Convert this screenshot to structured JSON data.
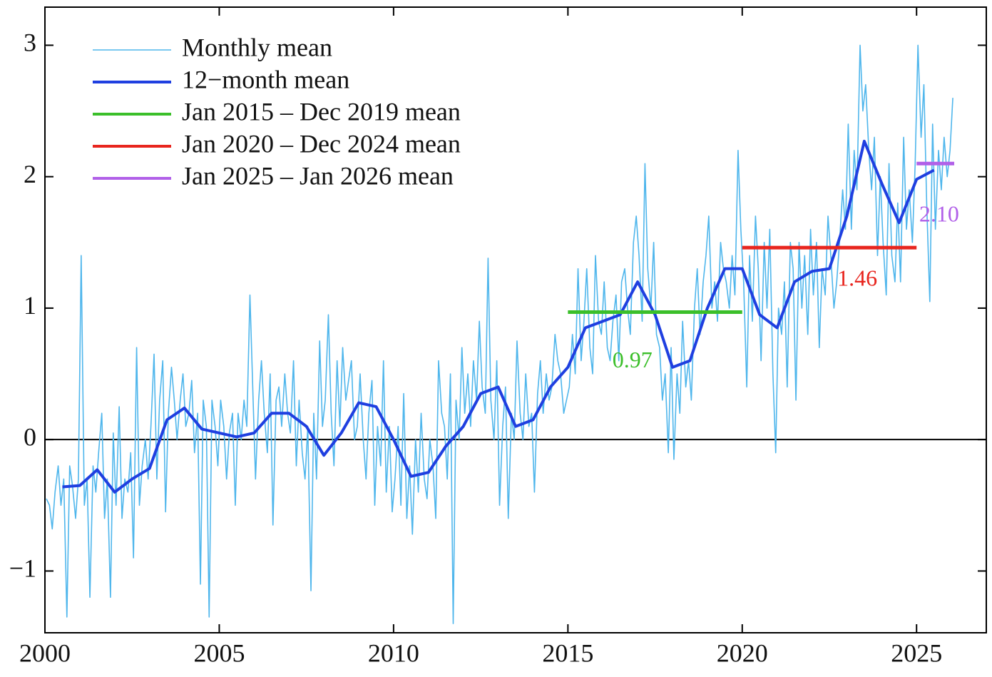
{
  "chart_data": {
    "type": "line",
    "xlim": [
      2000,
      2027
    ],
    "ylim": [
      -1.47,
      3.29
    ],
    "xticks": [
      2000,
      2005,
      2010,
      2015,
      2020,
      2025
    ],
    "yticks": [
      {
        "value": -1,
        "label": "−1"
      },
      0,
      1,
      2,
      3
    ],
    "legend": "upper left",
    "series": [
      {
        "name": "Monthly mean",
        "color": "#4fb6ec",
        "x": [
          2000.04,
          2000.13,
          2000.21,
          2000.29,
          2000.38,
          2000.46,
          2000.54,
          2000.63,
          2000.71,
          2000.79,
          2000.88,
          2000.96,
          2001.04,
          2001.13,
          2001.21,
          2001.29,
          2001.38,
          2001.46,
          2001.54,
          2001.63,
          2001.71,
          2001.79,
          2001.88,
          2001.96,
          2002.04,
          2002.13,
          2002.21,
          2002.29,
          2002.38,
          2002.46,
          2002.54,
          2002.63,
          2002.71,
          2002.79,
          2002.88,
          2002.96,
          2003.04,
          2003.13,
          2003.21,
          2003.29,
          2003.38,
          2003.46,
          2003.54,
          2003.63,
          2003.71,
          2003.79,
          2003.88,
          2003.96,
          2004.04,
          2004.13,
          2004.21,
          2004.29,
          2004.38,
          2004.46,
          2004.54,
          2004.63,
          2004.71,
          2004.79,
          2004.88,
          2004.96,
          2005.04,
          2005.13,
          2005.21,
          2005.29,
          2005.38,
          2005.46,
          2005.54,
          2005.63,
          2005.71,
          2005.79,
          2005.88,
          2005.96,
          2006.04,
          2006.13,
          2006.21,
          2006.29,
          2006.38,
          2006.46,
          2006.54,
          2006.63,
          2006.71,
          2006.79,
          2006.88,
          2006.96,
          2007.04,
          2007.13,
          2007.21,
          2007.29,
          2007.38,
          2007.46,
          2007.54,
          2007.63,
          2007.71,
          2007.79,
          2007.88,
          2007.96,
          2008.04,
          2008.13,
          2008.21,
          2008.29,
          2008.38,
          2008.46,
          2008.54,
          2008.63,
          2008.71,
          2008.79,
          2008.88,
          2008.96,
          2009.04,
          2009.13,
          2009.21,
          2009.29,
          2009.38,
          2009.46,
          2009.54,
          2009.63,
          2009.71,
          2009.79,
          2009.88,
          2009.96,
          2010.04,
          2010.13,
          2010.21,
          2010.29,
          2010.38,
          2010.46,
          2010.54,
          2010.63,
          2010.71,
          2010.79,
          2010.88,
          2010.96,
          2011.04,
          2011.13,
          2011.21,
          2011.29,
          2011.38,
          2011.46,
          2011.54,
          2011.63,
          2011.71,
          2011.79,
          2011.88,
          2011.96,
          2012.04,
          2012.13,
          2012.21,
          2012.29,
          2012.38,
          2012.46,
          2012.54,
          2012.63,
          2012.71,
          2012.79,
          2012.88,
          2012.96,
          2013.04,
          2013.13,
          2013.21,
          2013.29,
          2013.38,
          2013.46,
          2013.54,
          2013.63,
          2013.71,
          2013.79,
          2013.88,
          2013.96,
          2014.04,
          2014.13,
          2014.21,
          2014.29,
          2014.38,
          2014.46,
          2014.54,
          2014.63,
          2014.71,
          2014.79,
          2014.88,
          2014.96,
          2015.04,
          2015.13,
          2015.21,
          2015.29,
          2015.38,
          2015.46,
          2015.54,
          2015.63,
          2015.71,
          2015.79,
          2015.88,
          2015.96,
          2016.04,
          2016.13,
          2016.21,
          2016.29,
          2016.38,
          2016.46,
          2016.54,
          2016.63,
          2016.71,
          2016.79,
          2016.88,
          2016.96,
          2017.04,
          2017.13,
          2017.21,
          2017.29,
          2017.38,
          2017.46,
          2017.54,
          2017.63,
          2017.71,
          2017.79,
          2017.88,
          2017.96,
          2018.04,
          2018.13,
          2018.21,
          2018.29,
          2018.38,
          2018.46,
          2018.54,
          2018.63,
          2018.71,
          2018.79,
          2018.88,
          2018.96,
          2019.04,
          2019.13,
          2019.21,
          2019.29,
          2019.38,
          2019.46,
          2019.54,
          2019.63,
          2019.71,
          2019.79,
          2019.88,
          2019.96,
          2020.04,
          2020.13,
          2020.21,
          2020.29,
          2020.38,
          2020.46,
          2020.54,
          2020.63,
          2020.71,
          2020.79,
          2020.88,
          2020.96,
          2021.04,
          2021.13,
          2021.21,
          2021.29,
          2021.38,
          2021.46,
          2021.54,
          2021.63,
          2021.71,
          2021.79,
          2021.88,
          2021.96,
          2022.04,
          2022.13,
          2022.21,
          2022.29,
          2022.38,
          2022.46,
          2022.54,
          2022.63,
          2022.71,
          2022.79,
          2022.88,
          2022.96,
          2023.04,
          2023.13,
          2023.21,
          2023.29,
          2023.38,
          2023.46,
          2023.54,
          2023.63,
          2023.71,
          2023.79,
          2023.88,
          2023.96,
          2024.04,
          2024.13,
          2024.21,
          2024.29,
          2024.38,
          2024.46,
          2024.54,
          2024.63,
          2024.71,
          2024.79,
          2024.88,
          2024.96,
          2025.04,
          2025.13,
          2025.21,
          2025.29,
          2025.38,
          2025.46,
          2025.54,
          2025.63,
          2025.71,
          2025.79,
          2025.88,
          2025.96,
          2026.04
        ],
        "values": [
          -0.45,
          -0.5,
          -0.68,
          -0.4,
          -0.2,
          -0.5,
          -0.3,
          -1.35,
          -0.2,
          -0.35,
          -0.6,
          -0.3,
          1.4,
          -0.5,
          -0.3,
          -1.2,
          -0.2,
          -0.4,
          -0.1,
          0.2,
          -0.6,
          -0.3,
          -1.2,
          0.05,
          -0.5,
          0.25,
          -0.6,
          -0.3,
          -0.4,
          -0.1,
          -0.9,
          0.7,
          -0.5,
          -0.2,
          0.0,
          -0.3,
          0.1,
          0.65,
          -0.3,
          0.3,
          0.6,
          -0.55,
          0.2,
          0.55,
          0.3,
          0.0,
          0.3,
          0.5,
          0.1,
          0.2,
          0.45,
          -0.1,
          0.2,
          -1.1,
          0.3,
          0.1,
          -1.35,
          0.3,
          0.1,
          -0.2,
          0.3,
          0.1,
          -0.3,
          0.05,
          0.2,
          -0.5,
          0.2,
          0.0,
          0.3,
          0.1,
          1.1,
          0.4,
          -0.3,
          0.3,
          0.6,
          0.2,
          -0.1,
          0.5,
          -0.65,
          0.3,
          0.4,
          0.1,
          0.5,
          0.2,
          0.05,
          0.6,
          -0.2,
          0.3,
          -0.1,
          -0.3,
          0.1,
          -1.15,
          0.2,
          -0.3,
          0.75,
          0.1,
          0.3,
          0.95,
          0.2,
          -0.2,
          0.6,
          0.1,
          0.7,
          0.3,
          0.45,
          0.6,
          0.0,
          0.1,
          0.5,
          0.0,
          -0.3,
          0.2,
          0.45,
          -0.5,
          0.1,
          -0.2,
          0.6,
          -0.4,
          0.1,
          -0.55,
          -0.3,
          0.1,
          -0.5,
          0.35,
          -0.6,
          -0.2,
          -0.72,
          0.0,
          -0.4,
          0.2,
          -0.3,
          -0.45,
          0.0,
          -0.2,
          -0.6,
          0.6,
          0.2,
          0.1,
          -0.3,
          0.5,
          -1.4,
          0.3,
          0.0,
          0.7,
          0.2,
          0.5,
          0.1,
          0.6,
          0.3,
          0.9,
          0.4,
          0.2,
          1.38,
          0.3,
          0.0,
          0.6,
          -0.5,
          0.1,
          0.4,
          -0.6,
          0.2,
          0.0,
          0.75,
          0.2,
          0.0,
          0.5,
          0.1,
          0.2,
          -0.4,
          0.35,
          0.6,
          0.2,
          0.5,
          0.3,
          0.4,
          0.8,
          0.6,
          0.5,
          0.2,
          0.3,
          0.4,
          0.8,
          0.5,
          1.3,
          0.6,
          0.9,
          1.3,
          0.7,
          0.5,
          1.4,
          0.9,
          0.8,
          1.2,
          0.7,
          0.6,
          0.9,
          1.1,
          0.6,
          1.2,
          1.3,
          1.0,
          0.8,
          1.5,
          1.7,
          1.4,
          0.9,
          2.1,
          1.3,
          1.0,
          1.5,
          0.8,
          0.7,
          0.3,
          0.5,
          -0.1,
          0.7,
          -0.15,
          0.5,
          0.2,
          0.9,
          0.4,
          0.6,
          0.3,
          1.0,
          1.3,
          0.8,
          1.2,
          1.4,
          1.7,
          1.0,
          1.2,
          0.9,
          1.5,
          1.3,
          1.2,
          1.0,
          1.4,
          1.1,
          2.2,
          1.6,
          1.2,
          0.4,
          1.4,
          0.9,
          1.7,
          1.3,
          0.6,
          1.5,
          1.0,
          1.6,
          0.5,
          -0.1,
          1.0,
          0.8,
          1.2,
          0.4,
          1.5,
          1.3,
          0.3,
          1.5,
          1.0,
          1.4,
          0.8,
          1.6,
          1.1,
          1.5,
          0.7,
          1.3,
          1.1,
          1.7,
          1.4,
          1.0,
          1.2,
          1.5,
          1.9,
          1.6,
          2.4,
          1.6,
          2.2,
          1.9,
          3.0,
          2.5,
          2.7,
          2.2,
          1.9,
          2.3,
          1.4,
          2.0,
          1.5,
          1.1,
          2.1,
          1.4,
          1.2,
          1.8,
          1.2,
          2.3,
          1.6,
          1.9,
          1.5,
          2.1,
          3.0,
          2.3,
          2.7,
          1.8,
          1.05,
          2.4,
          1.6,
          2.2,
          1.9,
          2.3,
          2.0,
          2.2,
          2.6
        ]
      },
      {
        "name": "12−month mean",
        "color": "#1f3fe0",
        "x": [
          2000.5,
          2001,
          2001.5,
          2002,
          2002.5,
          2003,
          2003.5,
          2004,
          2004.5,
          2005,
          2005.5,
          2006,
          2006.5,
          2007,
          2007.5,
          2008,
          2008.5,
          2009,
          2009.5,
          2010,
          2010.5,
          2011,
          2011.5,
          2012,
          2012.5,
          2013,
          2013.5,
          2014,
          2014.5,
          2015,
          2015.5,
          2016,
          2016.5,
          2017,
          2017.5,
          2018,
          2018.5,
          2019,
          2019.5,
          2020,
          2020.5,
          2021,
          2021.5,
          2022,
          2022.5,
          2023,
          2023.5,
          2024,
          2024.5,
          2025,
          2025.5
        ],
        "values": [
          -0.36,
          -0.35,
          -0.23,
          -0.4,
          -0.3,
          -0.22,
          0.15,
          0.24,
          0.08,
          0.05,
          0.02,
          0.05,
          0.2,
          0.2,
          0.1,
          -0.12,
          0.05,
          0.28,
          0.25,
          0.0,
          -0.28,
          -0.25,
          -0.05,
          0.1,
          0.35,
          0.4,
          0.1,
          0.15,
          0.4,
          0.55,
          0.85,
          0.9,
          0.95,
          1.2,
          0.95,
          0.55,
          0.6,
          1.0,
          1.3,
          1.3,
          0.95,
          0.85,
          1.2,
          1.28,
          1.3,
          1.7,
          2.27,
          1.95,
          1.65,
          1.98,
          2.05
        ]
      },
      {
        "name": "Jan 2015 – Dec 2019 mean",
        "color": "#3bbf2a",
        "x": [
          2015,
          2020
        ],
        "values": [
          0.97,
          0.97
        ]
      },
      {
        "name": "Jan 2020 – Dec 2024 mean",
        "color": "#e8251e",
        "x": [
          2020,
          2025
        ],
        "values": [
          1.46,
          1.46
        ]
      },
      {
        "name": "Jan 2025 – Jan 2026 mean",
        "color": "#b160e8",
        "x": [
          2025,
          2026.08
        ],
        "values": [
          2.1,
          2.1
        ],
        "value_labels": [
          "2.10",
          "2.10"
        ]
      }
    ]
  }
}
